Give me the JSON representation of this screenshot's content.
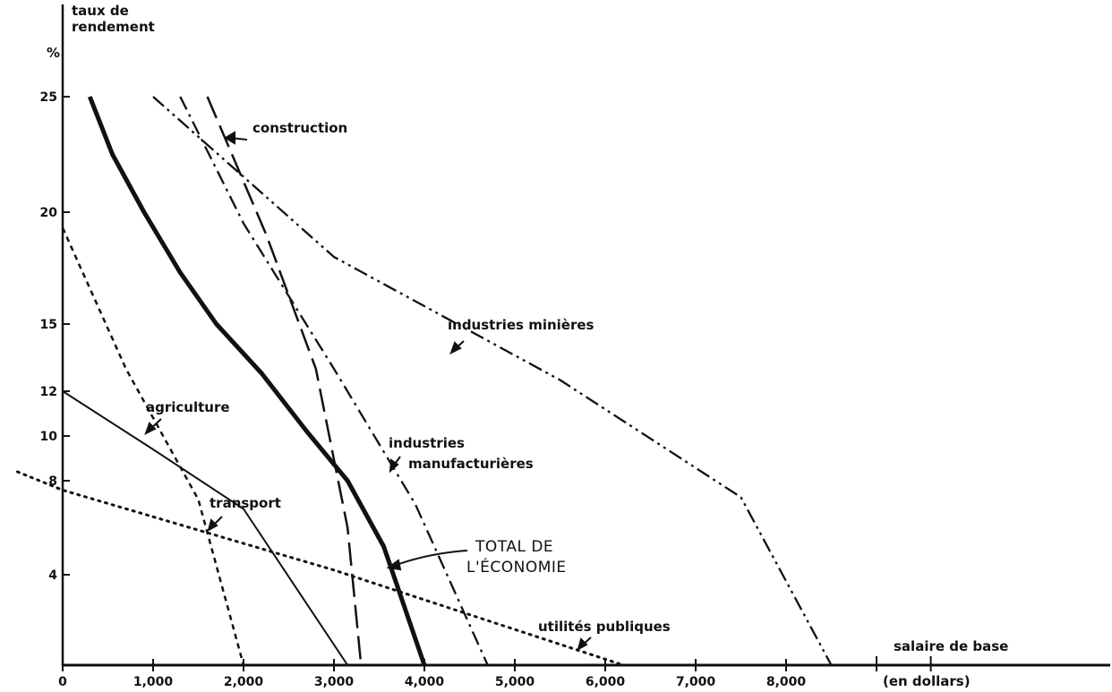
{
  "chart_data": {
    "type": "line",
    "ylabel": [
      "taux de",
      "rendement",
      "%"
    ],
    "xlabel": [
      "salaire de base",
      "(en dollars)"
    ],
    "xlim": [
      0,
      9500
    ],
    "ylim": [
      0,
      25
    ],
    "y_scale": "nonlinear (tick spacing shrinks near the bottom)",
    "x_ticks": [
      {
        "value": 0,
        "label": "0"
      },
      {
        "value": 1000,
        "label": "1,000"
      },
      {
        "value": 2000,
        "label": "2,000"
      },
      {
        "value": 3000,
        "label": "3,000"
      },
      {
        "value": 4000,
        "label": "4,000"
      },
      {
        "value": 5000,
        "label": "5,000"
      },
      {
        "value": 6000,
        "label": "6,000"
      },
      {
        "value": 7000,
        "label": "7,000"
      },
      {
        "value": 8000,
        "label": "8,000"
      }
    ],
    "y_ticks": [
      {
        "value": 25,
        "label": "25"
      },
      {
        "value": 20,
        "label": "20"
      },
      {
        "value": 15,
        "label": "15"
      },
      {
        "value": 12,
        "label": "12"
      },
      {
        "value": 10,
        "label": "10"
      },
      {
        "value": 8,
        "label": "8"
      },
      {
        "value": 4,
        "label": "4"
      }
    ],
    "grid": false,
    "series": [
      {
        "name": "TOTAL DE L'ÉCONOMIE",
        "style": "thick-solid",
        "points": [
          [
            300,
            25
          ],
          [
            550,
            22.5
          ],
          [
            900,
            20
          ],
          [
            1300,
            17.3
          ],
          [
            1700,
            15
          ],
          [
            2200,
            12.8
          ],
          [
            2700,
            10.2
          ],
          [
            3150,
            8
          ],
          [
            3550,
            5.2
          ],
          [
            4000,
            0
          ]
        ]
      },
      {
        "name": "construction",
        "style": "long-dash",
        "points": [
          [
            1600,
            25
          ],
          [
            2250,
            19
          ],
          [
            2800,
            13
          ],
          [
            3150,
            6
          ],
          [
            3300,
            0
          ]
        ]
      },
      {
        "name": "industries manufacturières",
        "style": "dash-dot",
        "points": [
          [
            1300,
            25
          ],
          [
            2000,
            19.5
          ],
          [
            3000,
            13
          ],
          [
            3900,
            7
          ],
          [
            4700,
            0
          ]
        ]
      },
      {
        "name": "industries minières",
        "style": "dash-dot-dot",
        "points": [
          [
            1000,
            25
          ],
          [
            3000,
            18
          ],
          [
            5500,
            12.5
          ],
          [
            7500,
            7.3
          ],
          [
            8500,
            0
          ]
        ]
      },
      {
        "name": "agriculture",
        "style": "short-dash",
        "points": [
          [
            0,
            19.3
          ],
          [
            700,
            13
          ],
          [
            1500,
            7.2
          ],
          [
            2000,
            0
          ]
        ]
      },
      {
        "name": "transport",
        "style": "thin-solid",
        "points": [
          [
            0,
            12
          ],
          [
            1000,
            9.4
          ],
          [
            2000,
            6.8
          ],
          [
            3150,
            0
          ]
        ]
      },
      {
        "name": "utilités publiques",
        "style": "dotted",
        "points": [
          [
            -500,
            8.4
          ],
          [
            0,
            7.6
          ],
          [
            3000,
            4.2
          ],
          [
            6200,
            0
          ]
        ]
      }
    ],
    "annotations": [
      "construction",
      "industries minières",
      "agriculture",
      "transport",
      "industries",
      "manufacturières",
      "TOTAL DE",
      "L'ÉCONOMIE",
      "utilités publiques"
    ]
  }
}
